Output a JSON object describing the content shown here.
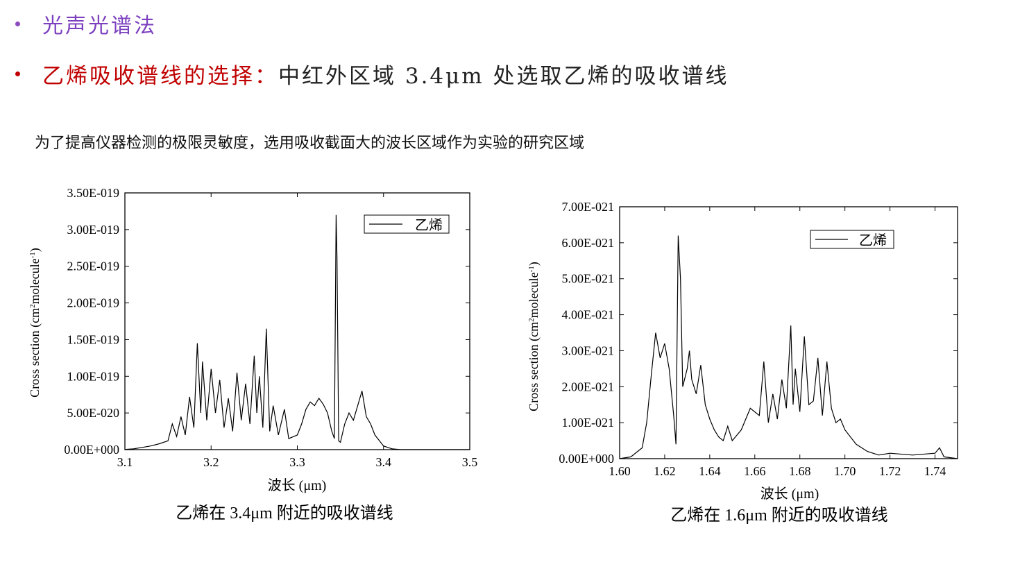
{
  "bullets": [
    {
      "text": "光声光谱法"
    },
    {
      "red": "乙烯吸收谱线的选择：",
      "black": "中红外区域 3.4μm 处选取乙烯的吸收谱线"
    }
  ],
  "subtitle": "为了提高仪器检测的极限灵敏度，选用吸收截面大的波长区域作为实验的研究区域",
  "colors": {
    "purple": "#7b3fbf",
    "red": "#c00000",
    "line": "#000000"
  },
  "chart_data": [
    {
      "type": "line",
      "title": "乙烯在 3.4μm 附近的吸收谱线",
      "xlabel": "波长 (μm)",
      "ylabel_main": "Cross section (cm",
      "ylabel_sup1": "2",
      "ylabel_mid": "molecule",
      "ylabel_sup2": "-1",
      "ylabel_end": ")",
      "xlim": [
        3.1,
        3.5
      ],
      "ylim": [
        0,
        3.5e-19
      ],
      "x_ticks": [
        "3.1",
        "3.2",
        "3.3",
        "3.4",
        "3.5"
      ],
      "y_ticks": [
        "0.00E+000",
        "5.00E-020",
        "1.00E-019",
        "1.50E-019",
        "2.00E-019",
        "2.50E-019",
        "3.00E-019",
        "3.50E-019"
      ],
      "legend": "乙烯",
      "series": [
        {
          "name": "乙烯",
          "x": [
            3.1,
            3.11,
            3.12,
            3.13,
            3.14,
            3.15,
            3.155,
            3.16,
            3.165,
            3.17,
            3.175,
            3.18,
            3.184,
            3.188,
            3.19,
            3.195,
            3.2,
            3.205,
            3.21,
            3.215,
            3.22,
            3.225,
            3.23,
            3.235,
            3.24,
            3.245,
            3.25,
            3.253,
            3.256,
            3.26,
            3.264,
            3.268,
            3.272,
            3.278,
            3.285,
            3.29,
            3.3,
            3.305,
            3.31,
            3.315,
            3.32,
            3.325,
            3.33,
            3.335,
            3.34,
            3.343,
            3.345,
            3.346,
            3.348,
            3.35,
            3.355,
            3.36,
            3.365,
            3.37,
            3.375,
            3.38,
            3.385,
            3.39,
            3.4,
            3.41,
            3.42,
            3.45,
            3.5
          ],
          "y": [
            3e-22,
            1e-21,
            3e-21,
            5e-21,
            8e-21,
            1.2e-20,
            3.5e-20,
            1.8e-20,
            4.5e-20,
            2e-20,
            7.2e-20,
            3e-20,
            1.45e-19,
            5e-20,
            1.2e-19,
            4e-20,
            1.1e-19,
            5e-20,
            9.5e-20,
            3e-20,
            7e-20,
            2.5e-20,
            1.05e-19,
            4e-20,
            9e-20,
            3.5e-20,
            1.28e-19,
            5e-20,
            1e-19,
            3e-20,
            1.65e-19,
            2.5e-20,
            6e-20,
            2e-20,
            5.5e-20,
            1.5e-20,
            2e-20,
            3.5e-20,
            5.5e-20,
            6.5e-20,
            6e-20,
            7e-20,
            6.2e-20,
            5e-20,
            2.5e-20,
            1.5e-20,
            3.2e-19,
            2.6e-19,
            1.2e-20,
            1e-20,
            3.5e-20,
            5e-20,
            4e-20,
            6e-20,
            8e-20,
            4.5e-20,
            3.5e-20,
            2e-20,
            5e-21,
            1e-21,
            0.0,
            0.0,
            0.0
          ]
        }
      ]
    },
    {
      "type": "line",
      "title": "乙烯在 1.6μm 附近的吸收谱线",
      "xlabel": "波长 (μm)",
      "ylabel_main": "Cross section (cm",
      "ylabel_sup1": "2",
      "ylabel_mid": "molecule",
      "ylabel_sup2": "-1",
      "ylabel_end": ")",
      "xlim": [
        1.6,
        1.75
      ],
      "ylim": [
        0,
        7e-21
      ],
      "x_ticks": [
        "1.60",
        "1.62",
        "1.64",
        "1.66",
        "1.68",
        "1.70",
        "1.72",
        "1.74"
      ],
      "y_ticks": [
        "0.00E+000",
        "1.00E-021",
        "2.00E-021",
        "3.00E-021",
        "4.00E-021",
        "5.00E-021",
        "6.00E-021",
        "7.00E-021"
      ],
      "legend": "乙烯",
      "series": [
        {
          "name": "乙烯",
          "x": [
            1.6,
            1.605,
            1.61,
            1.612,
            1.614,
            1.616,
            1.618,
            1.62,
            1.622,
            1.624,
            1.625,
            1.626,
            1.627,
            1.628,
            1.63,
            1.631,
            1.632,
            1.634,
            1.636,
            1.638,
            1.64,
            1.642,
            1.644,
            1.646,
            1.648,
            1.65,
            1.654,
            1.658,
            1.662,
            1.664,
            1.666,
            1.668,
            1.67,
            1.672,
            1.674,
            1.676,
            1.677,
            1.678,
            1.68,
            1.682,
            1.684,
            1.686,
            1.688,
            1.69,
            1.692,
            1.694,
            1.696,
            1.698,
            1.7,
            1.705,
            1.71,
            1.715,
            1.72,
            1.73,
            1.74,
            1.742,
            1.744,
            1.75
          ],
          "y": [
            0.0,
            5e-23,
            3e-22,
            1e-21,
            2.3e-21,
            3.5e-21,
            2.8e-21,
            3.2e-21,
            2.5e-21,
            1.2e-21,
            4e-22,
            6.2e-21,
            5e-21,
            2e-21,
            2.5e-21,
            3e-21,
            2.2e-21,
            1.8e-21,
            2.6e-21,
            1.5e-21,
            1.1e-21,
            8e-22,
            6e-22,
            5e-22,
            9e-22,
            5e-22,
            8e-22,
            1.4e-21,
            1.2e-21,
            2.7e-21,
            1e-21,
            1.8e-21,
            1.1e-21,
            2.2e-21,
            1.4e-21,
            3.7e-21,
            1.5e-21,
            2.5e-21,
            1.3e-21,
            3.4e-21,
            1.5e-21,
            1.6e-21,
            2.8e-21,
            1.2e-21,
            2.7e-21,
            1.4e-21,
            1e-21,
            1.1e-21,
            8e-22,
            4e-22,
            2e-22,
            1e-22,
            1.5e-22,
            1e-22,
            1.5e-22,
            3e-22,
            5e-23,
            0.0
          ]
        }
      ]
    }
  ]
}
